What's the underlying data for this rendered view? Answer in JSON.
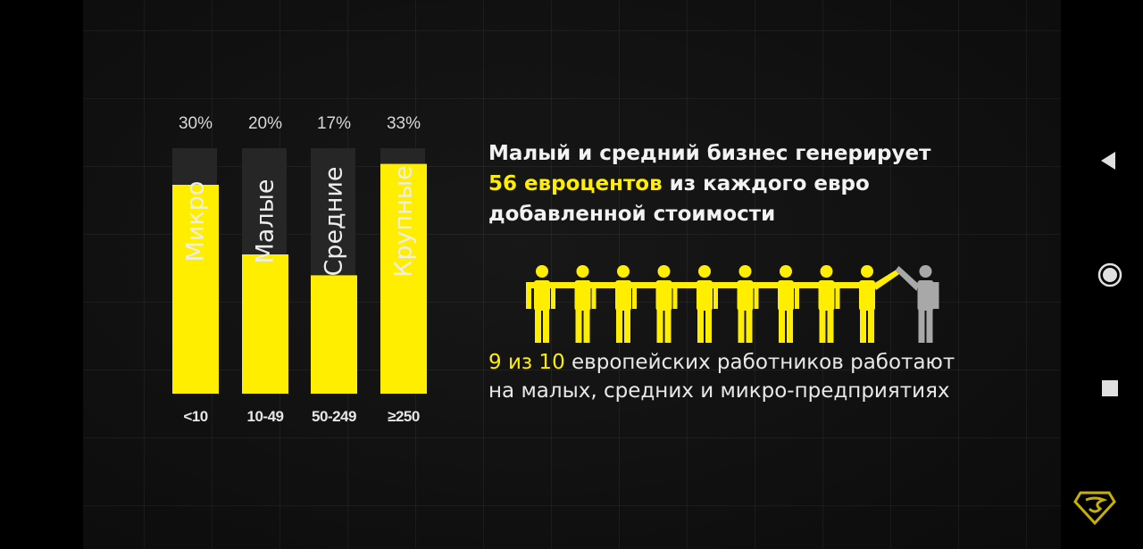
{
  "chart_data": {
    "type": "bar",
    "categories": [
      "Микро",
      "Малые",
      "Средние",
      "Крупные"
    ],
    "values": [
      30,
      20,
      17,
      33
    ],
    "value_labels": [
      "30%",
      "20%",
      "17%",
      "33%"
    ],
    "ranges": [
      "<10",
      "10-49",
      "50-249",
      "≥250"
    ],
    "ylim": [
      0,
      40
    ],
    "grid": true,
    "colors": {
      "bar": "#ffee00",
      "column_bg": "#262626"
    }
  },
  "headline": {
    "line1": "Малый и средний бизнес генерирует",
    "highlight": "56 евроцентов",
    "line2_rest": " из каждого евро",
    "line3": "добавленной стоимости"
  },
  "workers": {
    "highlight": "9 из 10",
    "rest": " европейских работников работают",
    "line2": "на малых, средних и микро-предприятиях",
    "yellow_count": 9,
    "total": 10,
    "colors": {
      "highlight": "#ffee00",
      "other": "#a8a8a8"
    }
  },
  "navbar": {
    "icons": [
      "back-icon",
      "home-icon",
      "recents-icon"
    ]
  },
  "watermark": {
    "icon": "superman-shield-logo-icon"
  }
}
